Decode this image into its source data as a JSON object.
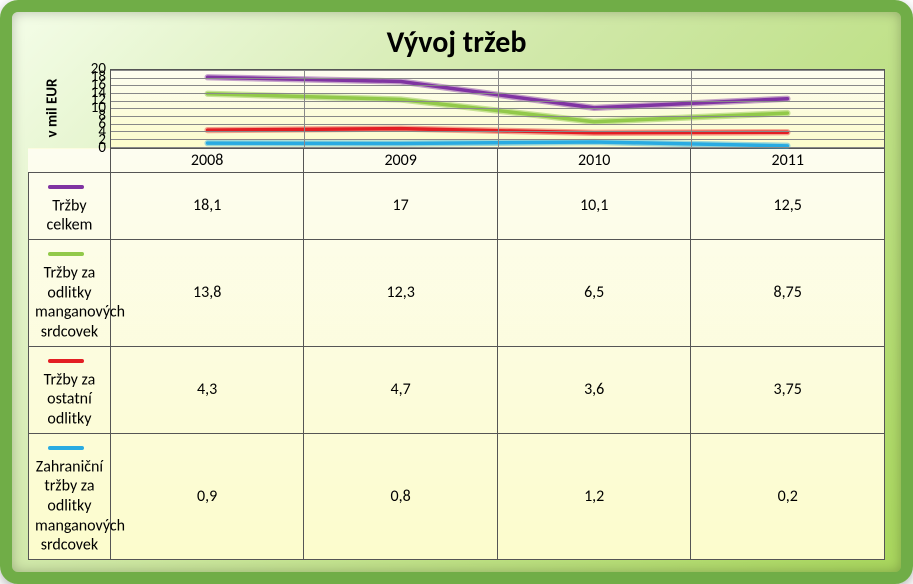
{
  "title": "Vývoj tržeb",
  "ylabel": "v mil EUR",
  "categories": [
    "2008",
    "2009",
    "2010",
    "2011"
  ],
  "yaxis": {
    "min": 0,
    "max": 20,
    "step": 2,
    "ticks": [
      0,
      2,
      4,
      6,
      8,
      10,
      12,
      14,
      16,
      18,
      20
    ]
  },
  "series": [
    {
      "name": "Tržby celkem",
      "color": "#8034a2",
      "glow": "rgba(128,52,162,0.45)",
      "width": 3.5,
      "values": [
        18.1,
        17,
        10.1,
        12.5
      ],
      "labels": [
        "18,1",
        "17",
        "10,1",
        "12,5"
      ]
    },
    {
      "name": "Tržby za odlitky manganových srdcovek",
      "color": "#92c94a",
      "glow": "rgba(146,201,74,0.5)",
      "width": 3.5,
      "values": [
        13.8,
        12.3,
        6.5,
        8.75
      ],
      "labels": [
        "13,8",
        "12,3",
        "6,5",
        "8,75"
      ]
    },
    {
      "name": "Tržby za ostatní odlitky",
      "color": "#e31e24",
      "glow": "rgba(227,30,36,0.4)",
      "width": 3.5,
      "values": [
        4.3,
        4.7,
        3.6,
        3.75
      ],
      "labels": [
        "4,3",
        "4,7",
        "3,6",
        "3,75"
      ]
    },
    {
      "name": "Zahraniční tržby za odlitky manganových srdcovek",
      "color": "#29abe2",
      "glow": "rgba(41,171,226,0.45)",
      "width": 3.5,
      "values": [
        0.9,
        0.8,
        1.2,
        0.2
      ],
      "labels": [
        "0,9",
        "0,8",
        "1,2",
        "0,2"
      ]
    }
  ],
  "layout": {
    "legend_col_width_pct": 34,
    "plot_border_color": "#555555",
    "grid_color": "#888888",
    "plot_bg_top": "#fdfdf0",
    "plot_bg_bottom": "#fcfccc",
    "frame_border_color": "#70ad47",
    "title_fontsize": 30,
    "axis_fontsize": 15,
    "table_fontsize": 16
  }
}
